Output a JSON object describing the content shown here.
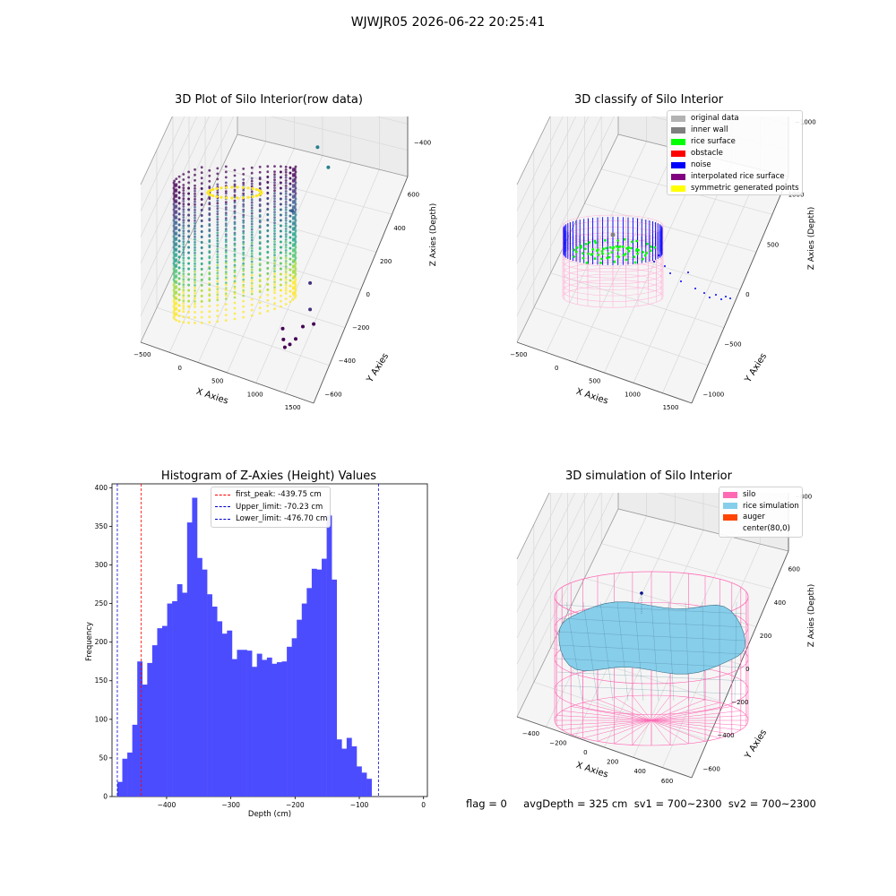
{
  "suptitle": "WJWJR05 2026-06-22 20:25:41",
  "status_line": "flag = 0     avgDepth = 325 cm  sv1 = 700~2300  sv2 = 700~2300",
  "colors": {
    "bar": "#4c4cff",
    "first_peak": "#ff0000",
    "limits": "#0000cc",
    "silo": "#ff69b4",
    "rice_simulation": "#87ceeb",
    "auger": "#ff4500",
    "original_data": "#b2b2b2",
    "inner_wall": "#7f7f7f",
    "rice_surface": "#00ff00",
    "obstacle": "#ff0000",
    "noise": "#0000ff",
    "interpolated_rice_surface": "#800080",
    "symmetric_generated_points": "#ffff00"
  },
  "chart_data": [
    {
      "type": "scatter3d",
      "title": "3D Plot of Silo Interior(row data)",
      "xlabel": "X Axies",
      "ylabel": "Y Axies",
      "zlabel": "Z Axies (Depth)",
      "x_ticks": [
        "−500",
        "0",
        "500",
        "1000",
        "1500"
      ],
      "y_ticks": [
        "−600",
        "−400",
        "−200",
        "0",
        "200",
        "400",
        "600"
      ],
      "z_ticks": [
        "0",
        "−100",
        "−200",
        "−300",
        "−400"
      ],
      "xlim": [
        -600,
        1800
      ],
      "ylim": [
        -650,
        650
      ],
      "zlim": [
        -480,
        10
      ],
      "colormap": "viridis",
      "outliers": [
        {
          "x": 900,
          "y": 300,
          "z": -270
        },
        {
          "x": 1100,
          "y": 250,
          "z": -290
        },
        {
          "x": 800,
          "y": 50,
          "z": -340
        },
        {
          "x": 1300,
          "y": -200,
          "z": -390
        },
        {
          "x": 1400,
          "y": -300,
          "z": -410
        },
        {
          "x": 1350,
          "y": -350,
          "z": -440
        },
        {
          "x": 1300,
          "y": -400,
          "z": -455
        },
        {
          "x": 1250,
          "y": -430,
          "z": -460
        },
        {
          "x": 1200,
          "y": -450,
          "z": -462
        },
        {
          "x": 1150,
          "y": -420,
          "z": -458
        },
        {
          "x": 1100,
          "y": -380,
          "z": -450
        },
        {
          "x": 1500,
          "y": -350,
          "z": -420
        }
      ]
    },
    {
      "type": "scatter3d",
      "title": "3D classify of Silo Interior",
      "xlabel": "X Axies",
      "ylabel": "Y Axies",
      "zlabel": "Z Axies (Depth)",
      "x_ticks": [
        "−500",
        "0",
        "500",
        "1000",
        "1500"
      ],
      "y_ticks": [
        "−1000",
        "−500",
        "0",
        "500",
        "1000"
      ],
      "z_ticks": [
        "500",
        "0",
        "−500",
        "−1000"
      ],
      "legend_position": "top-right",
      "legend": [
        {
          "label": "original data",
          "color": "#b2b2b2"
        },
        {
          "label": "inner wall",
          "color": "#7f7f7f"
        },
        {
          "label": "rice surface",
          "color": "#00ff00"
        },
        {
          "label": "obstacle",
          "color": "#ff0000"
        },
        {
          "label": "noise",
          "color": "#0000ff"
        },
        {
          "label": "interpolated rice surface",
          "color": "#800080"
        },
        {
          "label": "symmetric generated points",
          "color": "#ffff00"
        }
      ]
    },
    {
      "type": "bar",
      "title": "Histogram of Z-Axies (Height) Values",
      "xlabel": "Depth (cm)",
      "ylabel": "Frequency",
      "xlim": [
        -485,
        6
      ],
      "ylim": [
        0,
        405
      ],
      "x_ticks": [
        -400,
        -300,
        -200,
        -100,
        0
      ],
      "x_tick_labels": [
        "−400",
        "−300",
        "−200",
        "−100",
        "0"
      ],
      "y_ticks": [
        0,
        50,
        100,
        150,
        200,
        250,
        300,
        350,
        400
      ],
      "y_tick_labels": [
        "0",
        "50",
        "100",
        "150",
        "200",
        "250",
        "300",
        "350",
        "400"
      ],
      "bin_start": -476.7,
      "bin_width": 7.76,
      "values": [
        19,
        49,
        57,
        93,
        175,
        145,
        173,
        196,
        218,
        221,
        250,
        253,
        275,
        264,
        355,
        387,
        309,
        294,
        262,
        246,
        227,
        211,
        215,
        178,
        190,
        190,
        189,
        168,
        185,
        177,
        180,
        172,
        174,
        175,
        194,
        205,
        229,
        250,
        270,
        295,
        294,
        308,
        364,
        281,
        74,
        62,
        76,
        65,
        39,
        31,
        23
      ],
      "vlines": [
        {
          "label": "first_peak: -439.75 cm",
          "x": -439.75,
          "color": "#ff0000"
        },
        {
          "label": "Upper_limit: -70.23 cm",
          "x": -70.23,
          "color": "#0000cc"
        },
        {
          "label": "Lower_limit: -476.70 cm",
          "x": -476.7,
          "color": "#0000cc"
        }
      ],
      "legend_position": "top-center"
    },
    {
      "type": "surface3d",
      "title": "3D simulation of Silo Interior",
      "xlabel": "X Axies",
      "ylabel": "Y Axies",
      "zlabel": "Z Axies (Depth)",
      "x_ticks": [
        "−400",
        "−200",
        "0",
        "200",
        "400",
        "600"
      ],
      "y_ticks": [
        "−600",
        "−400",
        "−200",
        "0",
        "200",
        "400",
        "600"
      ],
      "z_ticks": [
        "200",
        "0",
        "−200",
        "−400",
        "−600",
        "−800"
      ],
      "legend_position": "top-right",
      "legend": [
        {
          "label": "silo",
          "color": "#ff69b4"
        },
        {
          "label": "rice simulation",
          "color": "#87ceeb"
        },
        {
          "label": "auger",
          "color": "#ff4500"
        },
        {
          "label": "center(80,0)",
          "color": ""
        }
      ]
    }
  ]
}
